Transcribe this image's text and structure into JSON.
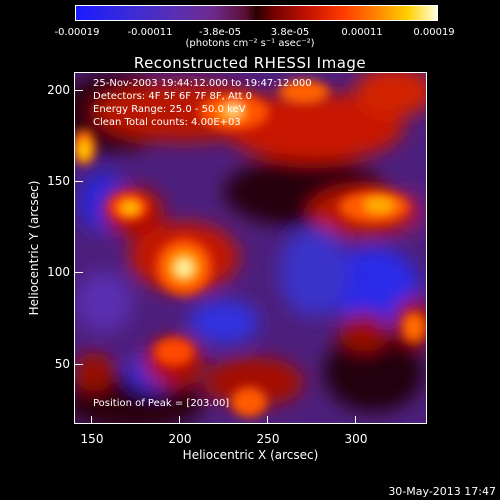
{
  "colorbar": {
    "ticks": [
      "-0.00019",
      "-0.00011",
      "-3.8e-05",
      "3.8e-05",
      "0.00011",
      "0.00019"
    ],
    "units": "(photons cm⁻² s⁻¹ asec⁻²)"
  },
  "title": "Reconstructed RHESSI Image",
  "info": {
    "time": "25-Nov-2003 19:44:12.000 to 19:47:12.000",
    "detectors": "Detectors: 4F 5F 6F 7F 8F, Att 0",
    "energy": "Energy Range: 25.0 - 50.0 keV",
    "clean": "Clean    Total counts: 4.00E+03"
  },
  "peak_text": "Position of Peak = [203.00]",
  "axes": {
    "xlabel": "Heliocentric X (arcsec)",
    "ylabel": "Heliocentric Y (arcsec)",
    "xticks": [
      "150",
      "200",
      "250",
      "300"
    ],
    "yticks": [
      "200",
      "150",
      "100",
      "50"
    ]
  },
  "timestamp": "30-May-2013 17:47"
}
